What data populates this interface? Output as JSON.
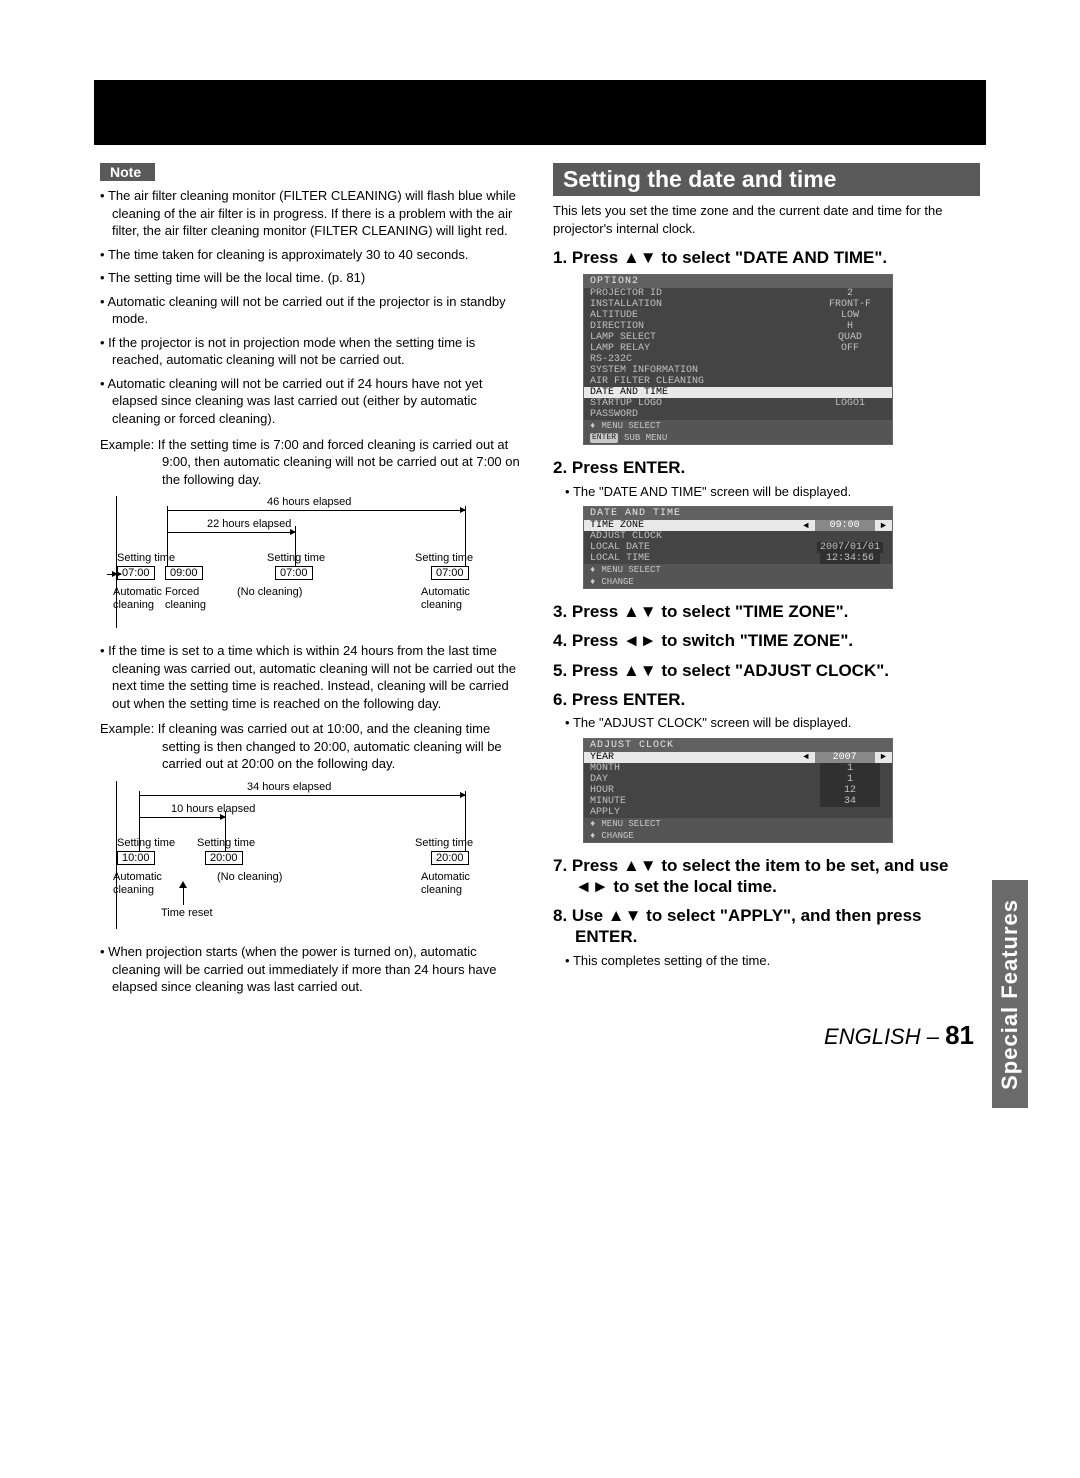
{
  "note_label": "Note",
  "left": {
    "bullets_top": [
      "The air filter cleaning monitor (FILTER CLEANING) will flash blue while cleaning of the air filter is in progress. If there is a problem with the air filter, the air filter cleaning monitor (FILTER CLEANING) will light red.",
      "The time taken for cleaning is approximately 30 to 40 seconds.",
      "The setting time will be the local time. (p. 81)",
      "Automatic cleaning will not be carried out if the projector is in standby mode.",
      "If the projector is not in projection mode when the setting time is reached, automatic cleaning will not be carried out.",
      "Automatic cleaning will not be carried out if 24 hours have not yet elapsed since cleaning was last carried out (either by automatic cleaning or forced cleaning)."
    ],
    "example1": "Example: If the setting time is 7:00 and forced cleaning is carried out at 9:00, then automatic cleaning will not be carried out at 7:00 on the following day.",
    "diagram1": {
      "top_label": "46 hours elapsed",
      "mid_label": "22 hours elapsed",
      "col1_top": "Setting time",
      "col1_box": "07:00",
      "col1_b1": "Automatic",
      "col1_b2": "cleaning",
      "col2_box": "09:00",
      "col2_b1": "Forced",
      "col2_b2": "cleaning",
      "col3_top": "Setting time",
      "col3_box": "07:00",
      "col3_b1": "(No cleaning)",
      "col4_top": "Setting time",
      "col4_box": "07:00",
      "col4_b1": "Automatic",
      "col4_b2": "cleaning"
    },
    "bullets_mid": [
      "If the time is set to a time which is within 24 hours from the last time cleaning was carried out, automatic cleaning will not be carried out the next time the setting time is reached. Instead, cleaning will be carried out when the setting time is reached on the following day."
    ],
    "example2": "Example: If cleaning was carried out at 10:00, and the cleaning time setting is then changed to 20:00, automatic cleaning will be carried out at 20:00 on the following day.",
    "diagram2": {
      "top_label": "34 hours elapsed",
      "mid_label": "10 hours elapsed",
      "col1_top": "Setting time",
      "col1_box": "10:00",
      "col1_b1": "Automatic",
      "col1_b2": "cleaning",
      "col2_top": "Setting time",
      "col2_box": "20:00",
      "col2_b1": "(No cleaning)",
      "col3_top": "Setting time",
      "col3_box": "20:00",
      "col3_b1": "Automatic",
      "col3_b2": "cleaning",
      "time_reset": "Time reset"
    },
    "bullets_bot": [
      "When projection starts (when the power is turned on), automatic cleaning will be carried out immediately if more than 24 hours have elapsed since cleaning was last carried out."
    ]
  },
  "right": {
    "section_title": "Setting the date and time",
    "intro": "This lets you set the time zone and the current date and time for the projector's internal clock.",
    "step1": "1. Press ▲▼ to select \"DATE AND TIME\".",
    "menu1": {
      "title": "OPTION2",
      "rows": [
        {
          "l": "PROJECTOR ID",
          "v": "2"
        },
        {
          "l": "INSTALLATION",
          "v": "FRONT-F"
        },
        {
          "l": "ALTITUDE",
          "v": "LOW"
        },
        {
          "l": "DIRECTION",
          "v": "H"
        },
        {
          "l": "LAMP SELECT",
          "v": "QUAD"
        },
        {
          "l": "LAMP RELAY",
          "v": "OFF"
        },
        {
          "l": "RS-232C",
          "v": ""
        },
        {
          "l": "SYSTEM INFORMATION",
          "v": ""
        },
        {
          "l": "AIR FILTER CLEANING",
          "v": ""
        }
      ],
      "sel": {
        "l": "DATE AND TIME",
        "v": ""
      },
      "rows2": [
        {
          "l": "STARTUP LOGO",
          "v": "LOGO1"
        },
        {
          "l": "PASSWORD",
          "v": ""
        }
      ],
      "foot1": "MENU SELECT",
      "foot2": "SUB MENU"
    },
    "step2": "2. Press ENTER.",
    "step2_sub": "The \"DATE AND TIME\" screen will be displayed.",
    "menu2": {
      "title": "DATE AND TIME",
      "sel": {
        "l": "TIME ZONE",
        "v": "09:00",
        "lr": true
      },
      "rows": [
        {
          "l": "ADJUST CLOCK",
          "v": ""
        },
        {
          "l": "LOCAL DATE",
          "v": "2007/01/01"
        },
        {
          "l": "LOCAL TIME",
          "v": "12:34:56"
        }
      ],
      "foot1": "MENU SELECT",
      "foot2": "CHANGE"
    },
    "step3": "3. Press ▲▼ to select \"TIME ZONE\".",
    "step4": "4. Press ◄► to switch \"TIME ZONE\".",
    "step5": "5. Press ▲▼ to select \"ADJUST CLOCK\".",
    "step6": "6. Press ENTER.",
    "step6_sub": "The \"ADJUST CLOCK\" screen will be displayed.",
    "menu3": {
      "title": "ADJUST CLOCK",
      "sel": {
        "l": "YEAR",
        "v": "2007",
        "lr": true
      },
      "rows": [
        {
          "l": "MONTH",
          "v": "1"
        },
        {
          "l": "DAY",
          "v": "1"
        },
        {
          "l": "HOUR",
          "v": "12"
        },
        {
          "l": "MINUTE",
          "v": "34"
        },
        {
          "l": "APPLY",
          "v": ""
        }
      ],
      "foot1": "MENU SELECT",
      "foot2": "CHANGE"
    },
    "step7": "7. Press ▲▼ to select the item to be set, and use ◄► to set the local time.",
    "step8": "8. Use ▲▼ to select \"APPLY\", and then press ENTER.",
    "step8_sub": "This completes setting of the time."
  },
  "side_tab": "Special Features",
  "footer_lang": "ENGLISH – ",
  "footer_page": "81"
}
